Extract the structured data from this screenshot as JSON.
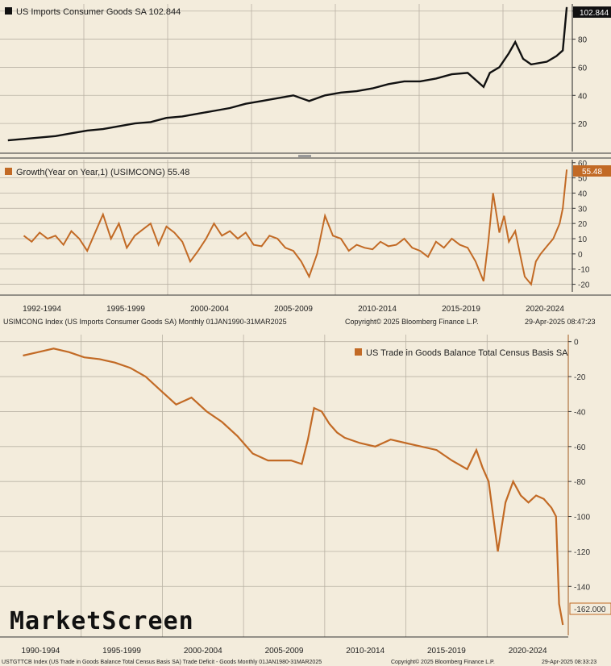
{
  "chart_data": [
    {
      "type": "line",
      "title": "US Imports Consumer Goods SA 102.844",
      "last_value_label": "102.844",
      "line_color": "#111111",
      "ylim": [
        0,
        105
      ],
      "y_ticks": [
        20,
        40,
        60,
        80,
        100
      ],
      "x": [
        1990,
        1991,
        1992,
        1993,
        1994,
        1995,
        1996,
        1997,
        1998,
        1999,
        2000,
        2001,
        2002,
        2003,
        2004,
        2005,
        2006,
        2007,
        2008,
        2009,
        2010,
        2011,
        2012,
        2013,
        2014,
        2015,
        2016,
        2017,
        2018,
        2019,
        2020,
        2020.4,
        2021,
        2021.6,
        2022,
        2022.5,
        2023,
        2024,
        2024.6,
        2025,
        2025.25
      ],
      "values": [
        8,
        9,
        10,
        11,
        13,
        15,
        16,
        18,
        20,
        21,
        24,
        25,
        27,
        29,
        31,
        34,
        36,
        38,
        40,
        36,
        40,
        42,
        43,
        45,
        48,
        50,
        50,
        52,
        55,
        56,
        46,
        56,
        60,
        70,
        78,
        66,
        62,
        64,
        68,
        72,
        102.844
      ]
    },
    {
      "type": "line",
      "title": "Growth(Year on Year,1) (USIMCONG) 55.48",
      "last_value_label": "55.48",
      "line_color": "#c26a25",
      "ylim": [
        -25,
        62
      ],
      "y_ticks": [
        60,
        50,
        40,
        30,
        20,
        10,
        0,
        -10,
        -20
      ],
      "x_tick_labels": [
        "1992-1994",
        "1995-1999",
        "2000-2004",
        "2005-2009",
        "2010-2014",
        "2015-2019",
        "2020-2024"
      ],
      "x": [
        1991,
        1991.5,
        1992,
        1992.5,
        1993,
        1993.5,
        1994,
        1994.5,
        1995,
        1995.5,
        1996,
        1996.5,
        1997,
        1997.5,
        1998,
        1998.5,
        1999,
        1999.5,
        2000,
        2000.5,
        2001,
        2001.5,
        2002,
        2002.5,
        2003,
        2003.5,
        2004,
        2004.5,
        2005,
        2005.5,
        2006,
        2006.5,
        2007,
        2007.5,
        2008,
        2008.5,
        2009,
        2009.5,
        2010,
        2010.5,
        2011,
        2011.5,
        2012,
        2012.5,
        2013,
        2013.5,
        2014,
        2014.5,
        2015,
        2015.5,
        2016,
        2016.5,
        2017,
        2017.5,
        2018,
        2018.5,
        2019,
        2019.5,
        2020,
        2020.3,
        2020.6,
        2021,
        2021.3,
        2021.6,
        2022,
        2022.3,
        2022.6,
        2023,
        2023.3,
        2023.6,
        2024,
        2024.4,
        2024.8,
        2025,
        2025.25
      ],
      "values": [
        12,
        8,
        14,
        10,
        12,
        6,
        15,
        10,
        2,
        14,
        26,
        10,
        20,
        4,
        12,
        16,
        20,
        6,
        18,
        14,
        8,
        -5,
        2,
        10,
        20,
        12,
        15,
        10,
        14,
        6,
        5,
        12,
        10,
        4,
        2,
        -5,
        -15,
        0,
        25,
        12,
        10,
        2,
        6,
        4,
        3,
        8,
        5,
        6,
        10,
        4,
        2,
        -2,
        8,
        4,
        10,
        6,
        4,
        -5,
        -18,
        8,
        40,
        14,
        25,
        8,
        15,
        0,
        -15,
        -20,
        -5,
        0,
        5,
        10,
        20,
        30,
        55.48
      ]
    },
    {
      "type": "line",
      "title": "US Trade in Goods Balance Total Census Basis SA",
      "last_value_label": "-162.000",
      "line_color": "#c26a25",
      "ylim": [
        -168,
        4
      ],
      "y_ticks": [
        0,
        -20,
        -40,
        -60,
        -80,
        -100,
        -120,
        -140
      ],
      "x_tick_labels": [
        "1990-1994",
        "1995-1999",
        "2000-2004",
        "2005-2009",
        "2010-2014",
        "2015-2019",
        "2020-2024"
      ],
      "x": [
        1990,
        1991,
        1992,
        1993,
        1994,
        1995,
        1996,
        1997,
        1998,
        1999,
        2000,
        2001,
        2002,
        2003,
        2004,
        2005,
        2006,
        2006.8,
        2007.5,
        2008.2,
        2008.6,
        2009,
        2009.5,
        2010,
        2010.5,
        2011,
        2012,
        2013,
        2014,
        2015,
        2016,
        2017,
        2018,
        2019,
        2019.6,
        2020,
        2020.4,
        2020.7,
        2021,
        2021.5,
        2022,
        2022.5,
        2023,
        2023.5,
        2024,
        2024.5,
        2024.8,
        2025,
        2025.25
      ],
      "values": [
        -8,
        -6,
        -4,
        -6,
        -9,
        -10,
        -12,
        -15,
        -20,
        -28,
        -36,
        -32,
        -40,
        -46,
        -54,
        -64,
        -68,
        -68,
        -68,
        -70,
        -56,
        -38,
        -40,
        -47,
        -52,
        -55,
        -58,
        -60,
        -56,
        -58,
        -60,
        -62,
        -68,
        -73,
        -62,
        -72,
        -80,
        -100,
        -120,
        -92,
        -80,
        -88,
        -92,
        -88,
        -90,
        -95,
        -100,
        -150,
        -162
      ]
    }
  ],
  "footers": {
    "top": "USIMCONG Index (US Imports Consumer Goods SA)  Monthly 01JAN1990-31MAR2025",
    "top_copyright": "Copyright© 2025 Bloomberg Finance L.P.",
    "top_date": "29-Apr-2025 08:47:23",
    "bottom": "USTGTTCB Index (US Trade in Goods Balance Total Census Basis SA) Trade Deficit - Goods  Monthly 01JAN1980-31MAR2025",
    "bottom_copyright": "Copyright© 2025 Bloomberg Finance L.P.",
    "bottom_date": "29-Apr-2025 08:33:23"
  },
  "watermark": "MarketScreen",
  "colors": {
    "background": "#f3ecdc",
    "orange": "#c26a25",
    "black": "#111111",
    "grid": "#b9b2a4"
  }
}
